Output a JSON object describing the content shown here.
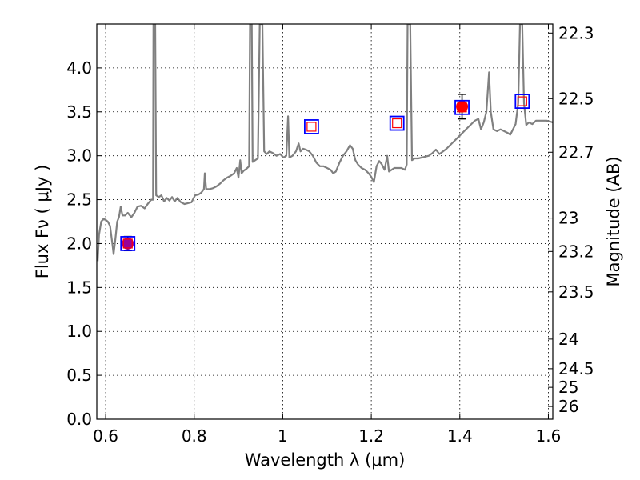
{
  "chart_data": {
    "type": "scatter",
    "title": "",
    "xlabel": "Wavelength  λ (μm)",
    "ylabel": "Flux  Fν  ( μJy )",
    "ylabel2": "Magnitude (AB)",
    "xlim": [
      0.58,
      1.61
    ],
    "ylim": [
      0,
      4.5
    ],
    "grid": true,
    "x_ticks": [
      {
        "value": 0.6,
        "label": "0.6"
      },
      {
        "value": 0.8,
        "label": "0.8"
      },
      {
        "value": 1.0,
        "label": "1"
      },
      {
        "value": 1.2,
        "label": "1.2"
      },
      {
        "value": 1.4,
        "label": "1.4"
      },
      {
        "value": 1.6,
        "label": "1.6"
      }
    ],
    "y_ticks": [
      {
        "value": 0.0,
        "label": "0.0"
      },
      {
        "value": 0.5,
        "label": "0.5"
      },
      {
        "value": 1.0,
        "label": "1.0"
      },
      {
        "value": 1.5,
        "label": "1.5"
      },
      {
        "value": 2.0,
        "label": "2.0"
      },
      {
        "value": 2.5,
        "label": "2.5"
      },
      {
        "value": 3.0,
        "label": "3.0"
      },
      {
        "value": 3.5,
        "label": "3.5"
      },
      {
        "value": 4.0,
        "label": "4.0"
      }
    ],
    "mag_ticks": [
      {
        "flux": 4.397,
        "label": "22.3"
      },
      {
        "flux": 3.65,
        "label": "22.5"
      },
      {
        "flux": 3.04,
        "label": "22.7"
      },
      {
        "flux": 2.29,
        "label": "23"
      },
      {
        "flux": 1.91,
        "label": "23.2"
      },
      {
        "flux": 1.45,
        "label": "23.5"
      },
      {
        "flux": 0.912,
        "label": "24"
      },
      {
        "flux": 0.575,
        "label": "24.5"
      },
      {
        "flux": 0.363,
        "label": "25"
      },
      {
        "flux": 0.145,
        "label": "26"
      }
    ],
    "series": [
      {
        "kind": "line",
        "color": "#808080",
        "points": [
          [
            0.582,
            1.8
          ],
          [
            0.585,
            2.1
          ],
          [
            0.59,
            2.25
          ],
          [
            0.595,
            2.28
          ],
          [
            0.6,
            2.27
          ],
          [
            0.605,
            2.25
          ],
          [
            0.61,
            2.2
          ],
          [
            0.615,
            2.0
          ],
          [
            0.618,
            1.88
          ],
          [
            0.622,
            2.05
          ],
          [
            0.626,
            2.25
          ],
          [
            0.63,
            2.3
          ],
          [
            0.634,
            2.42
          ],
          [
            0.638,
            2.32
          ],
          [
            0.644,
            2.32
          ],
          [
            0.65,
            2.35
          ],
          [
            0.658,
            2.3
          ],
          [
            0.665,
            2.35
          ],
          [
            0.672,
            2.42
          ],
          [
            0.68,
            2.43
          ],
          [
            0.688,
            2.4
          ],
          [
            0.695,
            2.45
          ],
          [
            0.703,
            2.5
          ],
          [
            0.707,
            2.5
          ],
          [
            0.708,
            4.5
          ],
          [
            0.712,
            4.5
          ],
          [
            0.714,
            2.55
          ],
          [
            0.72,
            2.53
          ],
          [
            0.726,
            2.55
          ],
          [
            0.732,
            2.48
          ],
          [
            0.738,
            2.52
          ],
          [
            0.744,
            2.49
          ],
          [
            0.75,
            2.53
          ],
          [
            0.756,
            2.48
          ],
          [
            0.762,
            2.52
          ],
          [
            0.77,
            2.47
          ],
          [
            0.778,
            2.45
          ],
          [
            0.786,
            2.46
          ],
          [
            0.794,
            2.47
          ],
          [
            0.802,
            2.55
          ],
          [
            0.81,
            2.56
          ],
          [
            0.816,
            2.58
          ],
          [
            0.822,
            2.62
          ],
          [
            0.824,
            2.8
          ],
          [
            0.827,
            2.62
          ],
          [
            0.834,
            2.62
          ],
          [
            0.842,
            2.63
          ],
          [
            0.85,
            2.65
          ],
          [
            0.858,
            2.68
          ],
          [
            0.866,
            2.72
          ],
          [
            0.874,
            2.75
          ],
          [
            0.882,
            2.77
          ],
          [
            0.89,
            2.8
          ],
          [
            0.896,
            2.86
          ],
          [
            0.9,
            2.75
          ],
          [
            0.904,
            2.95
          ],
          [
            0.907,
            2.8
          ],
          [
            0.912,
            2.83
          ],
          [
            0.918,
            2.85
          ],
          [
            0.924,
            2.88
          ],
          [
            0.926,
            4.5
          ],
          [
            0.93,
            4.5
          ],
          [
            0.932,
            2.93
          ],
          [
            0.938,
            2.95
          ],
          [
            0.944,
            2.97
          ],
          [
            0.948,
            4.5
          ],
          [
            0.954,
            4.5
          ],
          [
            0.958,
            3.05
          ],
          [
            0.964,
            3.02
          ],
          [
            0.97,
            3.05
          ],
          [
            0.978,
            3.03
          ],
          [
            0.986,
            3.0
          ],
          [
            0.994,
            3.02
          ],
          [
            1.002,
            2.98
          ],
          [
            1.008,
            3.0
          ],
          [
            1.012,
            3.45
          ],
          [
            1.015,
            2.98
          ],
          [
            1.022,
            3.0
          ],
          [
            1.03,
            3.05
          ],
          [
            1.036,
            3.14
          ],
          [
            1.04,
            3.05
          ],
          [
            1.046,
            3.08
          ],
          [
            1.052,
            3.07
          ],
          [
            1.06,
            3.05
          ],
          [
            1.068,
            3.0
          ],
          [
            1.076,
            2.92
          ],
          [
            1.084,
            2.88
          ],
          [
            1.092,
            2.88
          ],
          [
            1.1,
            2.86
          ],
          [
            1.108,
            2.84
          ],
          [
            1.114,
            2.8
          ],
          [
            1.12,
            2.82
          ],
          [
            1.128,
            2.92
          ],
          [
            1.136,
            3.0
          ],
          [
            1.144,
            3.05
          ],
          [
            1.152,
            3.12
          ],
          [
            1.158,
            3.08
          ],
          [
            1.164,
            2.95
          ],
          [
            1.17,
            2.9
          ],
          [
            1.178,
            2.86
          ],
          [
            1.186,
            2.84
          ],
          [
            1.194,
            2.8
          ],
          [
            1.2,
            2.76
          ],
          [
            1.206,
            2.7
          ],
          [
            1.212,
            2.88
          ],
          [
            1.218,
            2.94
          ],
          [
            1.224,
            2.9
          ],
          [
            1.23,
            2.84
          ],
          [
            1.236,
            3.0
          ],
          [
            1.24,
            2.82
          ],
          [
            1.246,
            2.84
          ],
          [
            1.252,
            2.86
          ],
          [
            1.26,
            2.86
          ],
          [
            1.268,
            2.86
          ],
          [
            1.276,
            2.84
          ],
          [
            1.28,
            2.9
          ],
          [
            1.282,
            4.5
          ],
          [
            1.288,
            4.5
          ],
          [
            1.292,
            2.95
          ],
          [
            1.298,
            2.97
          ],
          [
            1.306,
            2.97
          ],
          [
            1.314,
            2.98
          ],
          [
            1.322,
            2.99
          ],
          [
            1.33,
            3.0
          ],
          [
            1.338,
            3.03
          ],
          [
            1.346,
            3.07
          ],
          [
            1.354,
            3.02
          ],
          [
            1.362,
            3.05
          ],
          [
            1.37,
            3.08
          ],
          [
            1.378,
            3.12
          ],
          [
            1.386,
            3.16
          ],
          [
            1.394,
            3.2
          ],
          [
            1.402,
            3.24
          ],
          [
            1.41,
            3.28
          ],
          [
            1.418,
            3.32
          ],
          [
            1.426,
            3.36
          ],
          [
            1.434,
            3.4
          ],
          [
            1.442,
            3.42
          ],
          [
            1.448,
            3.3
          ],
          [
            1.454,
            3.38
          ],
          [
            1.46,
            3.5
          ],
          [
            1.466,
            3.95
          ],
          [
            1.47,
            3.5
          ],
          [
            1.476,
            3.3
          ],
          [
            1.484,
            3.28
          ],
          [
            1.492,
            3.3
          ],
          [
            1.5,
            3.28
          ],
          [
            1.508,
            3.26
          ],
          [
            1.514,
            3.24
          ],
          [
            1.52,
            3.3
          ],
          [
            1.526,
            3.36
          ],
          [
            1.532,
            3.6
          ],
          [
            1.536,
            4.5
          ],
          [
            1.541,
            4.5
          ],
          [
            1.545,
            3.6
          ],
          [
            1.55,
            3.35
          ],
          [
            1.556,
            3.38
          ],
          [
            1.564,
            3.36
          ],
          [
            1.572,
            3.4
          ],
          [
            1.58,
            3.4
          ],
          [
            1.588,
            3.4
          ],
          [
            1.596,
            3.4
          ],
          [
            1.604,
            3.39
          ],
          [
            1.61,
            3.38
          ]
        ]
      },
      {
        "kind": "model_squares",
        "points": [
          {
            "x": 0.65,
            "y": 2.0
          },
          {
            "x": 1.065,
            "y": 3.33
          },
          {
            "x": 1.258,
            "y": 3.37
          },
          {
            "x": 1.405,
            "y": 3.55
          },
          {
            "x": 1.541,
            "y": 3.62
          }
        ]
      },
      {
        "kind": "observed",
        "points": [
          {
            "x": 0.65,
            "y": 2.0,
            "yerr": 0.08,
            "color": "#9a0099"
          },
          {
            "x": 1.405,
            "y": 3.56,
            "yerr": 0.14,
            "color": "#ff0000"
          }
        ]
      }
    ]
  }
}
